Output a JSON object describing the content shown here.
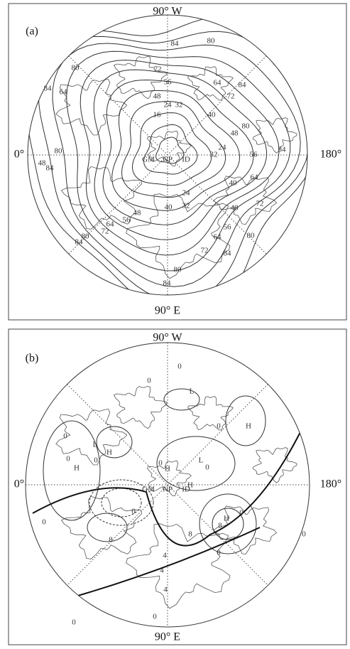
{
  "panels": [
    {
      "label": "(a)",
      "top_label": "90° W",
      "bottom_label": "90° E",
      "left_label": "0°",
      "right_label": "180°",
      "region_labels": [
        "GM",
        "NP",
        "ID"
      ],
      "contour_labels": [
        84,
        80,
        80,
        84,
        72,
        64,
        64,
        56,
        48,
        32,
        24,
        16,
        72,
        84,
        40,
        48,
        80,
        56,
        84,
        32,
        24,
        64,
        72,
        40,
        24,
        32,
        40,
        48,
        56,
        64,
        72,
        80,
        84,
        48,
        56,
        64,
        72,
        80,
        84,
        80,
        84,
        80,
        84,
        48
      ]
    },
    {
      "label": "(b)",
      "top_label": "90° W",
      "bottom_label": "90° E",
      "left_label": "0°",
      "right_label": "180°",
      "region_labels": [
        "GM",
        "NP",
        "ID"
      ],
      "pressure_labels": [
        "L",
        "H",
        "L",
        "H",
        "H",
        "H",
        "L",
        "H",
        "H"
      ],
      "contour_labels": [
        0,
        0,
        0,
        0,
        0,
        0,
        0,
        0,
        0,
        0,
        8,
        8,
        4,
        4,
        8,
        0,
        0,
        0,
        0,
        0,
        4
      ]
    }
  ]
}
